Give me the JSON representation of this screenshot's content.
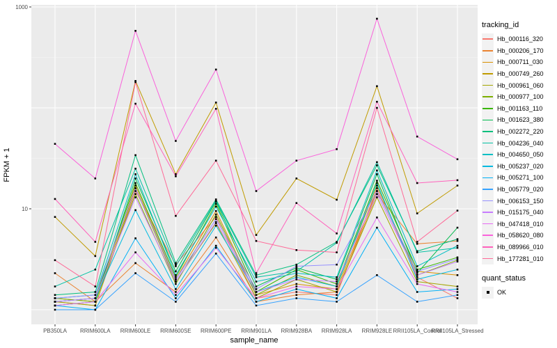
{
  "chart_data": {
    "type": "line",
    "title": "",
    "xlabel": "sample_name",
    "ylabel": "FPKM + 1",
    "y_scale": "log10",
    "ylim": [
      1,
      1000
    ],
    "y_ticks_labeled": [
      1000,
      10
    ],
    "gridlines_y_major": [
      1,
      10,
      100,
      1000
    ],
    "gridlines_y_minor": [
      3.162,
      31.62,
      316.2
    ],
    "grid": "on",
    "legend_position": "right",
    "panel_bg": "#EBEBEB",
    "grid_color": "#FFFFFF",
    "marker": {
      "shape": "square",
      "color": "#000000"
    },
    "categories": [
      "PB350LA",
      "RRIM600LA",
      "RRIM600LE",
      "RRIM600SE",
      "RRIM600PE",
      "RRIM901LA",
      "RRIM928BA",
      "RRIM928LA",
      "RRIM928LE",
      "RRII105LA_Control",
      "RRII105LA_Stressed"
    ],
    "series": [
      {
        "name": "Hb_000116_320",
        "color": "#F8766D",
        "values": [
          1.2,
          1.1,
          15,
          2.8,
          8.3,
          1.3,
          1.5,
          1.4,
          16,
          2.1,
          1.3
        ]
      },
      {
        "name": "Hb_000206_170",
        "color": "#EA8331",
        "values": [
          2.3,
          1.2,
          2.9,
          1.5,
          5.2,
          1.2,
          1.4,
          1.5,
          14,
          4.5,
          4.8
        ]
      },
      {
        "name": "Hb_000711_030",
        "color": "#D89000",
        "values": [
          1.3,
          1.2,
          17,
          2.0,
          9.5,
          1.4,
          1.8,
          1.6,
          15,
          2.4,
          2.2
        ]
      },
      {
        "name": "Hb_000749_260",
        "color": "#C09B00",
        "values": [
          8.3,
          3.4,
          185,
          22,
          113,
          5.5,
          20,
          12.3,
          164,
          9.0,
          17
        ]
      },
      {
        "name": "Hb_000961_060",
        "color": "#A3A500",
        "values": [
          1.2,
          1.1,
          16,
          1.9,
          7.2,
          1.3,
          2.0,
          1.5,
          13,
          1.9,
          1.7
        ]
      },
      {
        "name": "Hb_000977_100",
        "color": "#7CAE00",
        "values": [
          1.3,
          1.2,
          14,
          1.8,
          8.8,
          1.4,
          2.2,
          1.7,
          17,
          2.2,
          3.1
        ]
      },
      {
        "name": "Hb_001163_110",
        "color": "#39B600",
        "values": [
          1.2,
          1.3,
          18,
          2.1,
          11.2,
          1.5,
          2.5,
          1.8,
          19,
          2.5,
          3.3
        ]
      },
      {
        "name": "Hb_001623_380",
        "color": "#00BB4E",
        "values": [
          1.1,
          1.2,
          20,
          2.4,
          11.8,
          1.7,
          2.6,
          2.0,
          22,
          2.3,
          6.5
        ]
      },
      {
        "name": "Hb_002272_220",
        "color": "#00BF7D",
        "values": [
          1.4,
          1.5,
          34,
          2.9,
          12.4,
          2.2,
          2.8,
          4.7,
          27,
          3.8,
          5.0
        ]
      },
      {
        "name": "Hb_004236_040",
        "color": "#00C1A3",
        "values": [
          1.7,
          2.5,
          25,
          2.7,
          12.0,
          2.1,
          2.4,
          4.6,
          29,
          3.7,
          4.1
        ]
      },
      {
        "name": "Hb_004650_050",
        "color": "#00BFC4",
        "values": [
          1.3,
          1.4,
          22,
          2.2,
          10.5,
          1.9,
          2.3,
          2.1,
          24,
          2.7,
          4.3
        ]
      },
      {
        "name": "Hb_005237_020",
        "color": "#00BAE0",
        "values": [
          1.2,
          1.3,
          9.7,
          1.6,
          6.8,
          1.5,
          2.1,
          1.7,
          18,
          2.0,
          2.5
        ]
      },
      {
        "name": "Hb_005271_100",
        "color": "#00B0F6",
        "values": [
          1.1,
          1.0,
          5.1,
          1.3,
          4.3,
          1.2,
          1.6,
          1.3,
          6.5,
          1.5,
          1.6
        ]
      },
      {
        "name": "Hb_005779_020",
        "color": "#35A2FF",
        "values": [
          1.0,
          1.0,
          2.3,
          1.2,
          3.6,
          1.1,
          1.3,
          1.2,
          2.2,
          1.2,
          1.4
        ]
      },
      {
        "name": "Hb_006153_150",
        "color": "#9590FF",
        "values": [
          1.3,
          1.4,
          16,
          2.0,
          7.9,
          1.6,
          2.7,
          2.8,
          15,
          2.4,
          3.2
        ]
      },
      {
        "name": "Hb_015175_040",
        "color": "#C77CFF",
        "values": [
          1.2,
          1.3,
          13,
          1.9,
          7.4,
          1.5,
          2.0,
          1.9,
          14,
          2.2,
          3.0
        ]
      },
      {
        "name": "Hb_047418_010",
        "color": "#E76BF3",
        "values": [
          1.1,
          1.2,
          3.7,
          1.4,
          4.1,
          1.3,
          1.7,
          1.6,
          8.2,
          1.8,
          1.5
        ]
      },
      {
        "name": "Hb_058620_080",
        "color": "#FA62DB",
        "values": [
          44,
          20,
          580,
          47,
          240,
          15,
          30,
          39,
          765,
          52,
          31
        ]
      },
      {
        "name": "Hb_089966_010",
        "color": "#FF62BC",
        "values": [
          12.5,
          4.7,
          110,
          21,
          98,
          2.3,
          11.4,
          5.7,
          115,
          18,
          19.2
        ]
      },
      {
        "name": "Hb_177281_010",
        "color": "#FF6A98",
        "values": [
          3.1,
          1.7,
          180,
          8.5,
          30,
          4.8,
          3.9,
          3.7,
          100,
          4.7,
          9.6
        ]
      }
    ]
  },
  "legend": {
    "tracking_title": "tracking_id",
    "quant_title": "quant_status",
    "quant_label": "OK"
  }
}
